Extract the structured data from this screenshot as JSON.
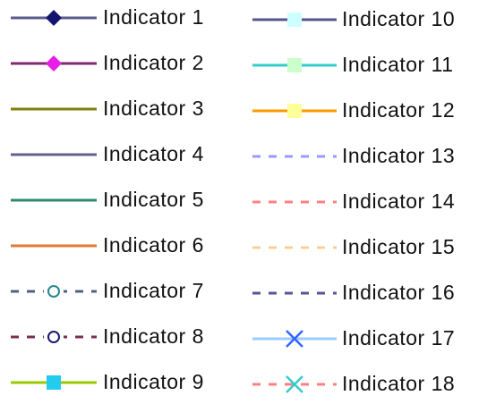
{
  "legend": {
    "items": [
      {
        "label": "Indicator 1",
        "color": "#5b5b8f",
        "marker": "diamond",
        "marker_color": "#14146e"
      },
      {
        "label": "Indicator 2",
        "color": "#7e2a6e",
        "marker": "diamond",
        "marker_color": "#e61ee6"
      },
      {
        "label": "Indicator 3",
        "color": "#808010"
      },
      {
        "label": "Indicator 4",
        "color": "#60608e"
      },
      {
        "label": "Indicator 5",
        "color": "#2e8a6c"
      },
      {
        "label": "Indicator 6",
        "color": "#e07a30"
      },
      {
        "label": "Indicator 7",
        "color": "#506080",
        "dashed": true,
        "marker": "circle",
        "marker_color": "#2a8a8a"
      },
      {
        "label": "Indicator 8",
        "color": "#7a3050",
        "dashed": true,
        "marker": "circle",
        "marker_color": "#1a1a6e"
      },
      {
        "label": "Indicator 9",
        "color": "#99cc00",
        "marker": "square",
        "marker_color": "#22ccee"
      },
      {
        "label": "Indicator 10",
        "color": "#55558a",
        "marker": "square",
        "marker_color": "#ccffff"
      },
      {
        "label": "Indicator 11",
        "color": "#33cccc",
        "marker": "square",
        "marker_color": "#ccffcc"
      },
      {
        "label": "Indicator 12",
        "color": "#ff9900",
        "marker": "square",
        "marker_color": "#ffff99"
      },
      {
        "label": "Indicator 13",
        "color": "#9999ff",
        "dashed": true
      },
      {
        "label": "Indicator 14",
        "color": "#ff8080",
        "dashed": true
      },
      {
        "label": "Indicator 15",
        "color": "#ffcc99",
        "dashed": true
      },
      {
        "label": "Indicator 16",
        "color": "#555599",
        "dashed": true
      },
      {
        "label": "Indicator 17",
        "color": "#99ccff",
        "marker": "x",
        "marker_color": "#3366ff"
      },
      {
        "label": "Indicator 18",
        "color": "#ff8080",
        "dashed": true,
        "marker": "x",
        "marker_color": "#33cccc"
      }
    ]
  }
}
